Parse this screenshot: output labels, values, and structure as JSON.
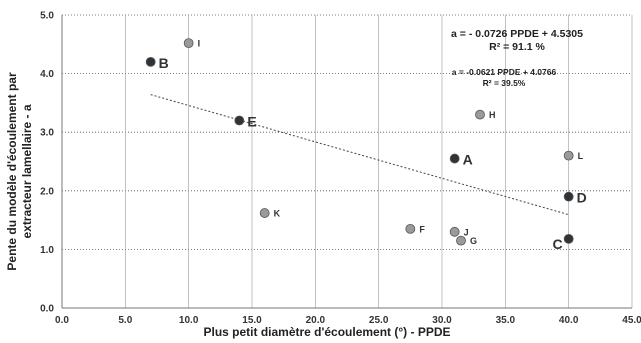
{
  "chart_data": {
    "type": "scatter",
    "title": "",
    "xlabel": "Plus petit diamètre d'écoulement (°) - PPDE",
    "ylabel": [
      "Pente du modèle d'écoulement par",
      "extracteur lamellaire - a"
    ],
    "xlim": [
      0,
      45
    ],
    "ylim": [
      0,
      5
    ],
    "x_ticks": [
      "0.0",
      "5.0",
      "10.0",
      "15.0",
      "20.0",
      "25.0",
      "30.0",
      "35.0",
      "40.0",
      "45.0"
    ],
    "y_ticks": [
      "0.0",
      "1.0",
      "2.0",
      "3.0",
      "4.0",
      "5.0"
    ],
    "grid": "horizontal dotted",
    "series": [
      {
        "points": [
          {
            "label": "B",
            "x": 7.0,
            "y": 4.2,
            "marker": "dark",
            "label_size": "large"
          },
          {
            "label": "E",
            "x": 14.0,
            "y": 3.2,
            "marker": "dark",
            "label_size": "large"
          },
          {
            "label": "A",
            "x": 31.0,
            "y": 2.55,
            "marker": "dark",
            "label_size": "large"
          },
          {
            "label": "D",
            "x": 40.0,
            "y": 1.9,
            "marker": "dark",
            "label_size": "large"
          },
          {
            "label": "C",
            "x": 40.0,
            "y": 1.18,
            "marker": "dark",
            "label_size": "large"
          },
          {
            "label": "I",
            "x": 10.0,
            "y": 4.52,
            "marker": "grey",
            "label_size": "small"
          },
          {
            "label": "H",
            "x": 33.0,
            "y": 3.3,
            "marker": "grey",
            "label_size": "small"
          },
          {
            "label": "L",
            "x": 40.0,
            "y": 2.6,
            "marker": "grey",
            "label_size": "small"
          },
          {
            "label": "K",
            "x": 16.0,
            "y": 1.62,
            "marker": "grey",
            "label_size": "small"
          },
          {
            "label": "F",
            "x": 27.5,
            "y": 1.35,
            "marker": "grey",
            "label_size": "small"
          },
          {
            "label": "J",
            "x": 31.0,
            "y": 1.3,
            "marker": "grey",
            "label_size": "small"
          },
          {
            "label": "G",
            "x": 31.5,
            "y": 1.15,
            "marker": "grey",
            "label_size": "small"
          }
        ]
      }
    ],
    "trendline": {
      "x_start": 7.0,
      "x_end": 40.0,
      "slope": -0.0621,
      "intercept": 4.0766,
      "style": "dotted"
    },
    "annotations": [
      {
        "line1": "a = - 0.0726 PPDE + 4.5305",
        "line2": "R² = 91.1 %",
        "size": "large"
      },
      {
        "line1": "a = -0.0621 PPDE + 4.0766",
        "line2": "R² = 39.5%",
        "size": "small"
      }
    ],
    "colors": {
      "dark_marker": "#2f3438",
      "grey_marker": "#9a9a9a",
      "grid": "#555555"
    }
  }
}
